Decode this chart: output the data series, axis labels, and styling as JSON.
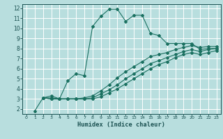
{
  "xlabel": "Humidex (Indice chaleur)",
  "bg_color": "#b8dede",
  "grid_color": "#ffffff",
  "line_color": "#1a7060",
  "xlim_min": -0.5,
  "xlim_max": 23.5,
  "ylim_min": 1.5,
  "ylim_max": 12.4,
  "xticks": [
    0,
    1,
    2,
    3,
    4,
    5,
    6,
    7,
    8,
    9,
    10,
    11,
    12,
    13,
    14,
    15,
    16,
    17,
    18,
    19,
    20,
    21,
    22,
    23
  ],
  "yticks": [
    2,
    3,
    4,
    5,
    6,
    7,
    8,
    9,
    10,
    11,
    12
  ],
  "line1": {
    "x": [
      1,
      2,
      3,
      4,
      5,
      6,
      7,
      8,
      9,
      10,
      11,
      12,
      13,
      14,
      15,
      16,
      17,
      18,
      19,
      20,
      21,
      22,
      23
    ],
    "y": [
      1.8,
      3.1,
      3.3,
      3.0,
      4.8,
      5.5,
      5.3,
      10.2,
      11.2,
      11.9,
      11.9,
      10.7,
      11.3,
      11.3,
      9.5,
      9.3,
      8.5,
      8.5,
      8.5,
      8.5,
      7.9,
      8.0,
      8.0
    ]
  },
  "line2": {
    "x": [
      2,
      3,
      4,
      5,
      6,
      7,
      8,
      9,
      10,
      11,
      12,
      13,
      14,
      15,
      16,
      17,
      18,
      19,
      20,
      21,
      22,
      23
    ],
    "y": [
      3.1,
      3.1,
      3.0,
      3.0,
      3.0,
      3.1,
      3.3,
      3.8,
      4.4,
      5.1,
      5.7,
      6.2,
      6.7,
      7.2,
      7.4,
      7.6,
      7.9,
      8.1,
      8.3,
      8.1,
      8.2,
      8.2
    ]
  },
  "line3": {
    "x": [
      2,
      3,
      4,
      5,
      6,
      7,
      8,
      9,
      10,
      11,
      12,
      13,
      14,
      15,
      16,
      17,
      18,
      19,
      20,
      21,
      22,
      23
    ],
    "y": [
      3.1,
      3.0,
      3.0,
      3.0,
      3.0,
      3.0,
      3.1,
      3.5,
      3.9,
      4.4,
      5.0,
      5.5,
      6.0,
      6.5,
      6.8,
      7.1,
      7.4,
      7.7,
      7.9,
      7.7,
      7.9,
      8.0
    ]
  },
  "line4": {
    "x": [
      2,
      3,
      4,
      5,
      6,
      7,
      8,
      9,
      10,
      11,
      12,
      13,
      14,
      15,
      16,
      17,
      18,
      19,
      20,
      21,
      22,
      23
    ],
    "y": [
      3.1,
      3.0,
      3.0,
      3.0,
      3.0,
      3.0,
      3.0,
      3.2,
      3.6,
      4.0,
      4.5,
      5.0,
      5.5,
      6.0,
      6.4,
      6.7,
      7.1,
      7.4,
      7.6,
      7.4,
      7.6,
      7.8
    ]
  }
}
